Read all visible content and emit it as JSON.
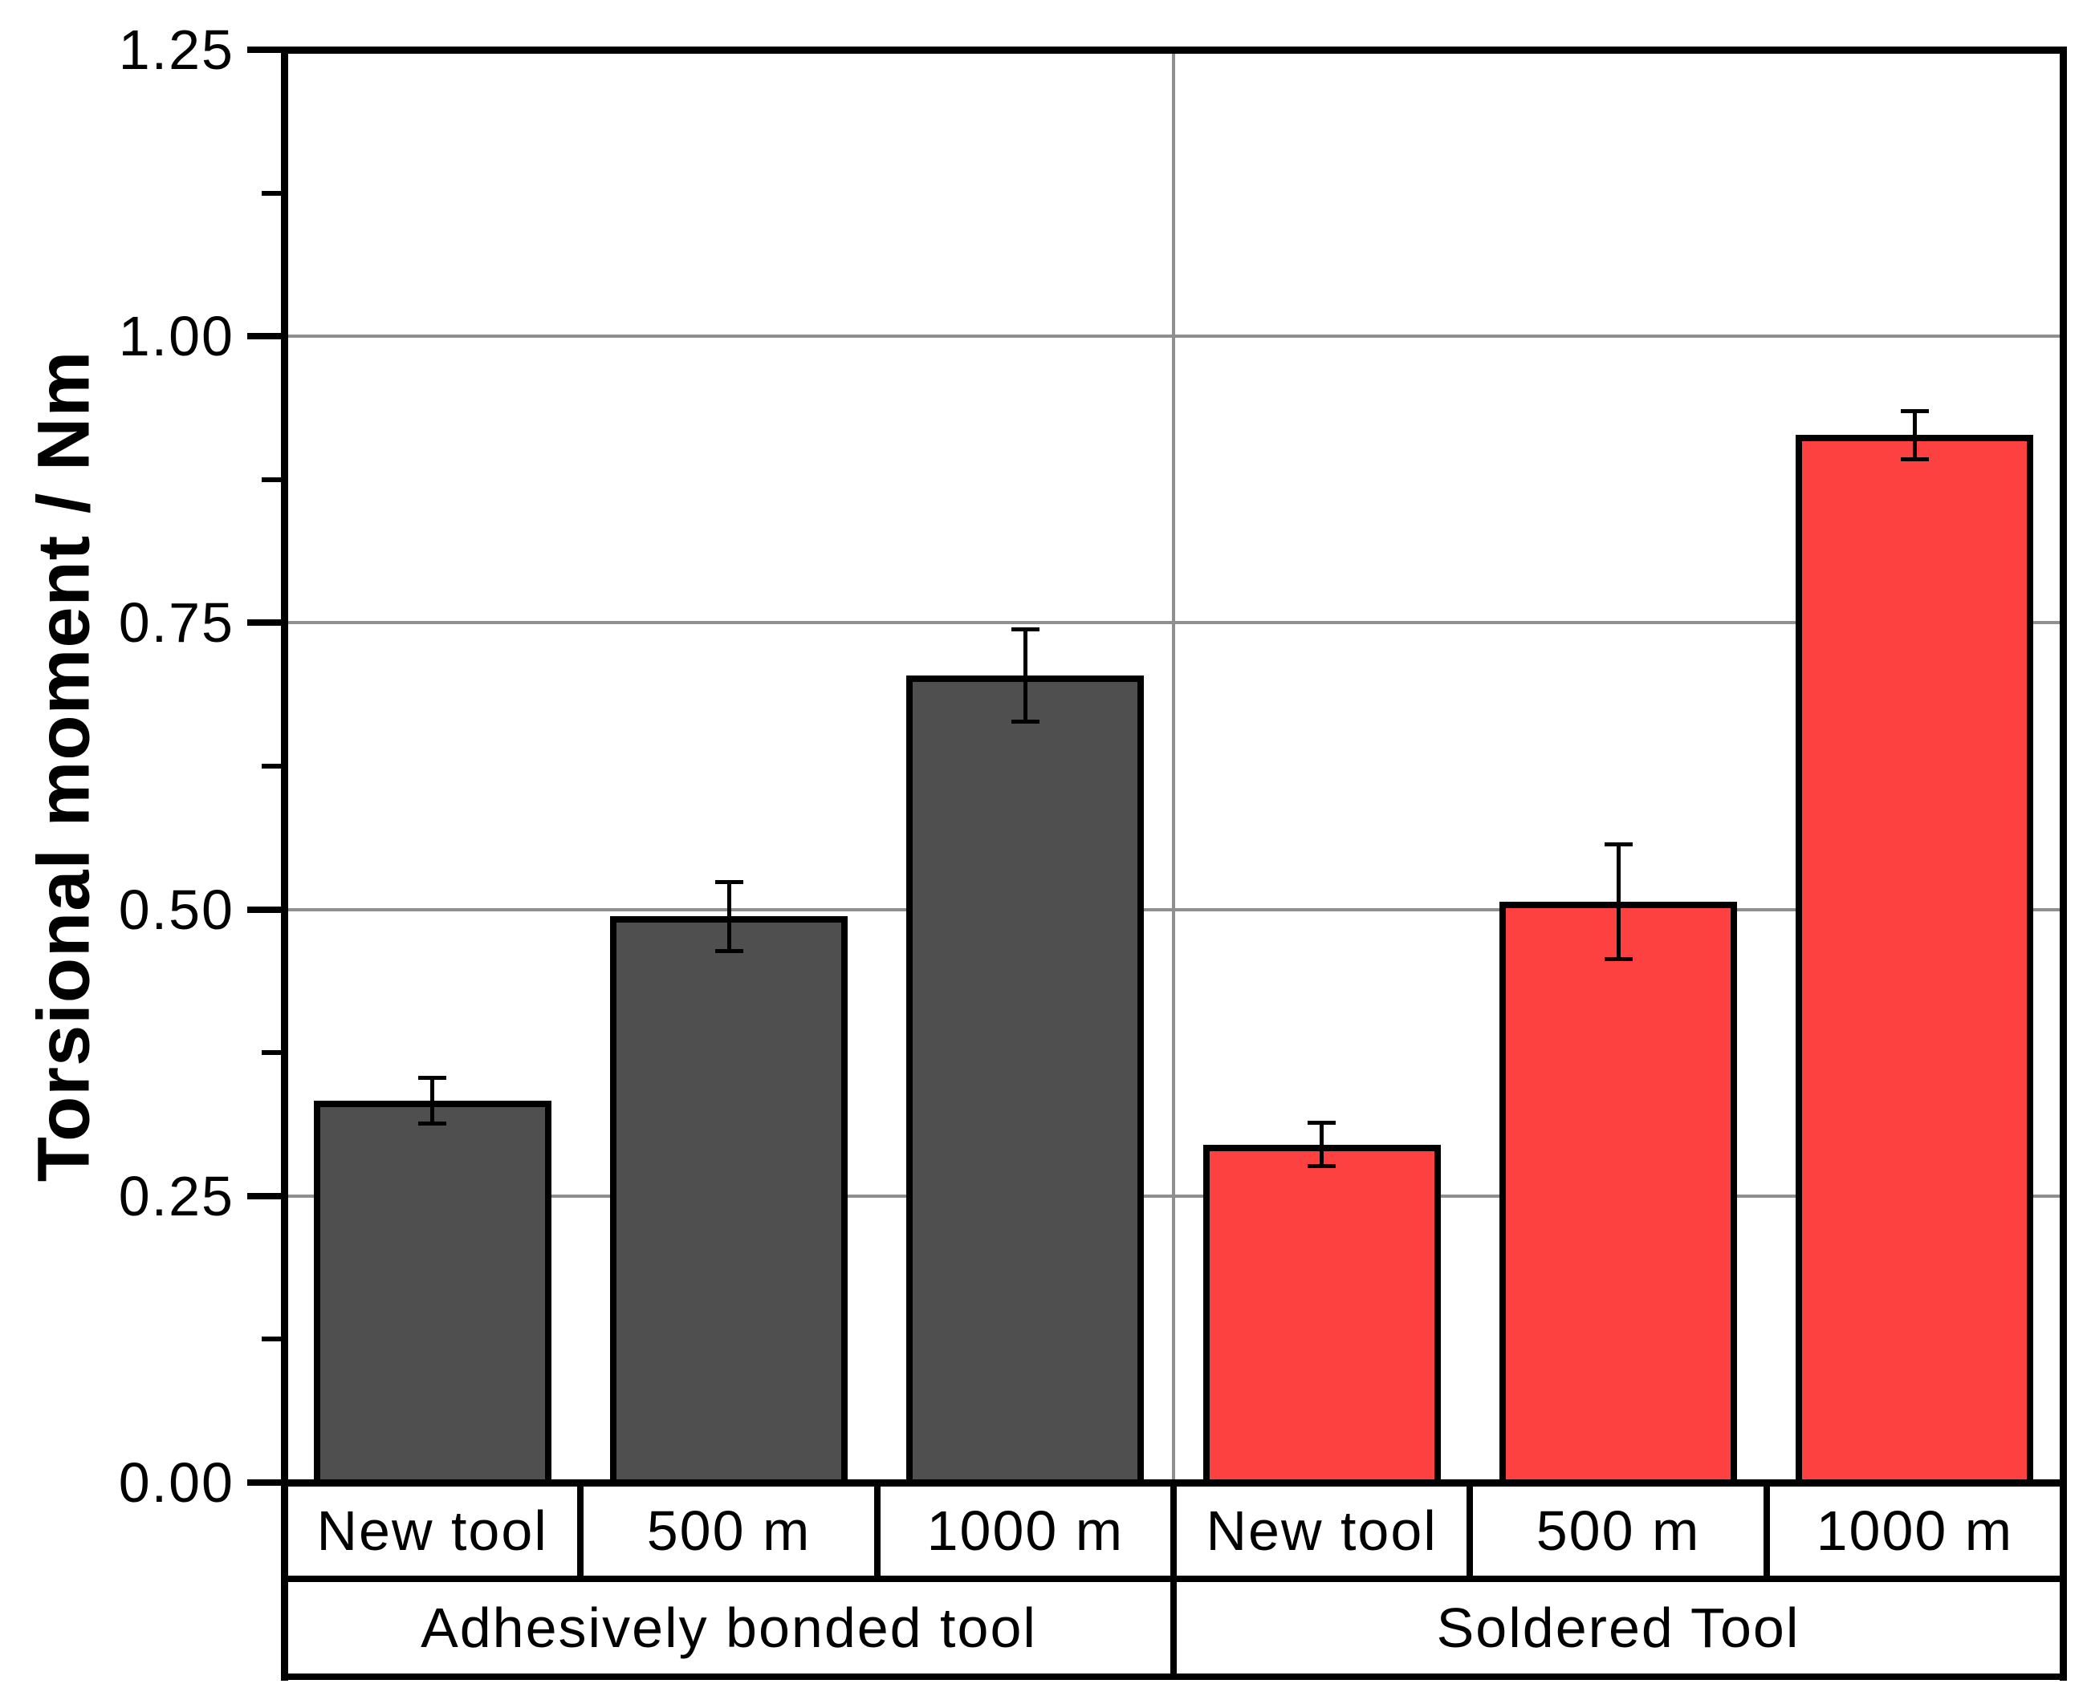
{
  "chart_data": {
    "type": "bar",
    "title": "",
    "ylabel": "Torsional moment / Nm",
    "ylim": [
      0,
      1.25
    ],
    "ytick_labels": [
      "0.00",
      "0.25",
      "0.50",
      "0.75",
      "1.00",
      "1.25"
    ],
    "minor_ticks": [
      0.125,
      0.375,
      0.625,
      0.875,
      1.125
    ],
    "grid": {
      "horizontal_at": [
        0.25,
        0.5,
        0.75,
        1.0
      ],
      "vertical_group_divider": true,
      "line_color": "#8F8F8F"
    },
    "legend_position": "none",
    "groups": [
      {
        "label": "Adhesively bonded tool",
        "bar_color": "#4F4F4F",
        "categories": [
          "New tool",
          "500 m",
          "1000 m"
        ],
        "values": [
          0.333,
          0.494,
          0.704
        ],
        "errors": [
          0.02,
          0.03,
          0.04
        ]
      },
      {
        "label": "Soldered Tool",
        "bar_color": "#FC4140",
        "categories": [
          "New tool",
          "500 m",
          "1000 m"
        ],
        "values": [
          0.295,
          0.507,
          0.914
        ],
        "errors": [
          0.019,
          0.05,
          0.021
        ]
      }
    ],
    "bar_border_color": "#000000",
    "error_bar_color": "#000000",
    "axis_color": "#000000",
    "background_color": "#FFFFFF"
  }
}
